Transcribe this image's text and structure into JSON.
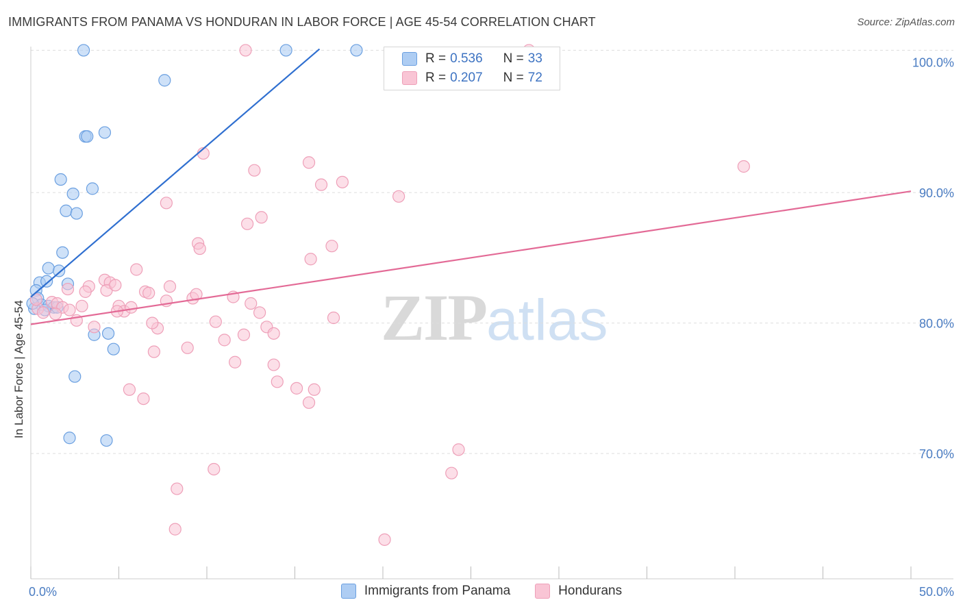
{
  "header": {
    "title": "IMMIGRANTS FROM PANAMA VS HONDURAN IN LABOR FORCE | AGE 45-54 CORRELATION CHART",
    "source": "Source: ZipAtlas.com"
  },
  "watermark": {
    "zip": "ZIP",
    "atlas": "atlas"
  },
  "legend": {
    "rows": [
      {
        "r_label": "R =",
        "r_value": "0.536",
        "n_label": "N =",
        "n_value": "33"
      },
      {
        "r_label": "R =",
        "r_value": "0.207",
        "n_label": "N =",
        "n_value": "72"
      }
    ]
  },
  "bottom_legend": {
    "panama": "Immigrants from Panama",
    "hondurans": "Hondurans"
  },
  "colors": {
    "panama_fill": "#aecdf3",
    "panama_stroke": "#6a9fe0",
    "panama_line": "#2f6fd0",
    "honduran_fill": "#f9c5d5",
    "honduran_stroke": "#ee9fb8",
    "honduran_line": "#e36a96",
    "axis_tick_text": "#4a7cc2",
    "grid": "#dddddd"
  },
  "chart_data": {
    "type": "scatter",
    "title": "IMMIGRANTS FROM PANAMA VS HONDURAN IN LABOR FORCE | AGE 45-54 CORRELATION CHART",
    "xlabel": "",
    "ylabel": "In Labor Force | Age 45-54",
    "xlim": [
      0,
      50
    ],
    "ylim": [
      60.4,
      101.5
    ],
    "x_tick_labels": [
      {
        "value": 0,
        "label": "0.0%"
      },
      {
        "value": 50,
        "label": "50.0%"
      }
    ],
    "y_tick_labels": [
      {
        "value": 70,
        "label": "70.0%"
      },
      {
        "value": 80,
        "label": "80.0%"
      },
      {
        "value": 90,
        "label": "90.0%"
      },
      {
        "value": 100,
        "label": "100.0%"
      }
    ],
    "y_gridlines": [
      70,
      80,
      90,
      100.9
    ],
    "x_minor_ticks": [
      5,
      10,
      15,
      20,
      25,
      30,
      35,
      40,
      45
    ],
    "series": [
      {
        "name": "Immigrants from Panama",
        "color": "#aecdf3",
        "trend": {
          "x": [
            0,
            16.4
          ],
          "y": [
            82.0,
            101.0
          ]
        },
        "points": [
          [
            3.0,
            100.9
          ],
          [
            14.5,
            100.9
          ],
          [
            18.5,
            100.9
          ],
          [
            7.6,
            98.6
          ],
          [
            4.2,
            94.6
          ],
          [
            3.1,
            94.3
          ],
          [
            3.2,
            94.3
          ],
          [
            1.7,
            91.0
          ],
          [
            3.5,
            90.3
          ],
          [
            2.4,
            89.9
          ],
          [
            2.0,
            88.6
          ],
          [
            2.6,
            88.4
          ],
          [
            1.8,
            85.4
          ],
          [
            1.0,
            84.2
          ],
          [
            1.6,
            84.0
          ],
          [
            0.5,
            83.1
          ],
          [
            0.9,
            83.2
          ],
          [
            2.1,
            83.0
          ],
          [
            0.3,
            82.5
          ],
          [
            0.4,
            81.9
          ],
          [
            0.6,
            81.4
          ],
          [
            1.0,
            81.3
          ],
          [
            1.3,
            81.2
          ],
          [
            0.2,
            81.1
          ],
          [
            1.5,
            81.2
          ],
          [
            3.6,
            79.1
          ],
          [
            4.4,
            79.2
          ],
          [
            4.7,
            78.0
          ],
          [
            2.5,
            75.9
          ],
          [
            2.2,
            71.2
          ],
          [
            4.3,
            71.0
          ],
          [
            0.1,
            81.5
          ],
          [
            0.8,
            81.0
          ]
        ]
      },
      {
        "name": "Hondurans",
        "color": "#f9c5d5",
        "trend": {
          "x": [
            0,
            50
          ],
          "y": [
            79.9,
            90.1
          ]
        },
        "points": [
          [
            12.2,
            100.9
          ],
          [
            28.3,
            100.9
          ],
          [
            9.8,
            93.0
          ],
          [
            12.7,
            91.7
          ],
          [
            15.8,
            92.3
          ],
          [
            16.5,
            90.6
          ],
          [
            17.7,
            90.8
          ],
          [
            20.9,
            89.7
          ],
          [
            40.5,
            92.0
          ],
          [
            7.7,
            89.2
          ],
          [
            12.3,
            87.6
          ],
          [
            13.1,
            88.1
          ],
          [
            9.5,
            86.1
          ],
          [
            9.6,
            85.7
          ],
          [
            17.1,
            85.9
          ],
          [
            15.9,
            84.9
          ],
          [
            6.0,
            84.1
          ],
          [
            4.2,
            83.3
          ],
          [
            4.5,
            83.1
          ],
          [
            3.3,
            82.8
          ],
          [
            2.1,
            82.6
          ],
          [
            3.1,
            82.4
          ],
          [
            4.3,
            82.5
          ],
          [
            6.5,
            82.4
          ],
          [
            6.7,
            82.3
          ],
          [
            7.9,
            82.8
          ],
          [
            9.2,
            81.9
          ],
          [
            11.5,
            82.0
          ],
          [
            7.7,
            81.7
          ],
          [
            1.2,
            81.6
          ],
          [
            1.5,
            81.5
          ],
          [
            1.8,
            81.2
          ],
          [
            2.9,
            81.3
          ],
          [
            5.0,
            81.3
          ],
          [
            5.3,
            80.9
          ],
          [
            5.7,
            81.2
          ],
          [
            0.4,
            81.1
          ],
          [
            0.7,
            80.8
          ],
          [
            1.4,
            80.7
          ],
          [
            2.6,
            80.2
          ],
          [
            4.9,
            80.9
          ],
          [
            13.0,
            80.8
          ],
          [
            17.2,
            80.4
          ],
          [
            10.5,
            80.1
          ],
          [
            13.4,
            79.7
          ],
          [
            7.2,
            79.6
          ],
          [
            3.6,
            79.7
          ],
          [
            12.1,
            79.1
          ],
          [
            13.8,
            79.2
          ],
          [
            11.0,
            78.7
          ],
          [
            8.9,
            78.1
          ],
          [
            7.0,
            77.8
          ],
          [
            11.6,
            77.0
          ],
          [
            13.8,
            76.8
          ],
          [
            14.0,
            75.5
          ],
          [
            15.1,
            75.0
          ],
          [
            16.1,
            74.9
          ],
          [
            5.6,
            74.9
          ],
          [
            6.4,
            74.2
          ],
          [
            15.8,
            73.9
          ],
          [
            24.3,
            70.3
          ],
          [
            23.9,
            68.5
          ],
          [
            10.4,
            68.8
          ],
          [
            8.3,
            67.3
          ],
          [
            8.2,
            64.2
          ],
          [
            20.1,
            63.4
          ],
          [
            0.3,
            81.8
          ],
          [
            2.2,
            81.0
          ],
          [
            4.8,
            82.9
          ],
          [
            6.9,
            80.0
          ],
          [
            9.4,
            82.2
          ],
          [
            12.5,
            81.5
          ]
        ]
      }
    ]
  }
}
